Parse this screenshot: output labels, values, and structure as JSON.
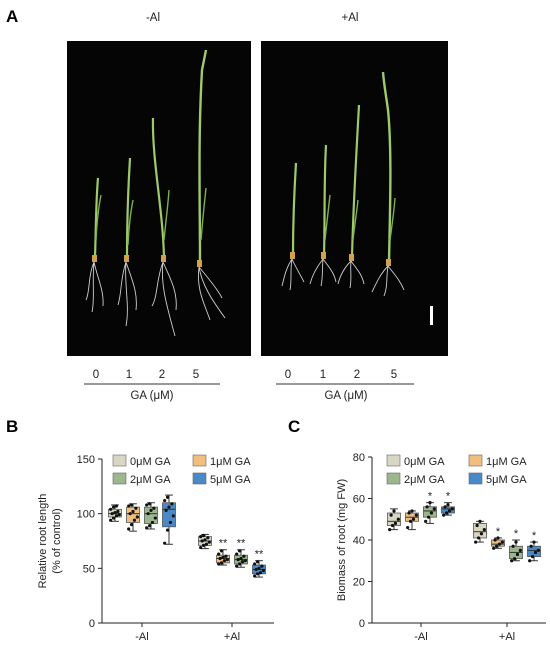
{
  "panel_a": {
    "letter": "A",
    "left_label": "-Al",
    "right_label": "+Al",
    "doses": [
      "0",
      "1",
      "2",
      "5"
    ],
    "axis_label": "GA (μM)"
  },
  "chart_data": [
    {
      "panel": "B",
      "type": "box",
      "ylabel_line1": "Relative root length",
      "ylabel_line2": "(% of control)",
      "ylim": [
        0,
        150
      ],
      "yticks": [
        "0",
        "50",
        "100",
        "150"
      ],
      "categories": [
        "-Al",
        "+Al"
      ],
      "legend": [
        "0μM GA",
        "1μM GA",
        "2μM GA",
        "5μM GA"
      ],
      "legend_placement": "top",
      "colors": [
        "#d9d7c4",
        "#f0bf7d",
        "#9cb78d",
        "#4a89c8"
      ],
      "series": [
        {
          "name": "0μM GA",
          "boxes": [
            {
              "category": "-Al",
              "min": 93,
              "q1": 97,
              "median": 100,
              "q3": 104,
              "max": 108,
              "points": [
                94,
                96,
                98,
                99,
                100,
                101,
                102,
                104,
                106,
                107
              ],
              "sig": ""
            },
            {
              "category": "+Al",
              "min": 68,
              "q1": 71,
              "median": 75,
              "q3": 79,
              "max": 81,
              "points": [
                69,
                71,
                72,
                74,
                75,
                76,
                78,
                79,
                80
              ],
              "sig": ""
            }
          ]
        },
        {
          "name": "1μM GA",
          "boxes": [
            {
              "category": "-Al",
              "min": 84,
              "q1": 92,
              "median": 100,
              "q3": 106,
              "max": 109,
              "points": [
                86,
                90,
                94,
                97,
                100,
                102,
                105,
                107,
                108
              ],
              "sig": ""
            },
            {
              "category": "+Al",
              "min": 53,
              "q1": 55,
              "median": 59,
              "q3": 62,
              "max": 67,
              "points": [
                54,
                55,
                57,
                58,
                59,
                60,
                61,
                63,
                66
              ],
              "sig": "**"
            }
          ]
        },
        {
          "name": "2μM GA",
          "boxes": [
            {
              "category": "-Al",
              "min": 86,
              "q1": 91,
              "median": 100,
              "q3": 106,
              "max": 110,
              "points": [
                87,
                89,
                92,
                96,
                100,
                103,
                105,
                108,
                109
              ],
              "sig": ""
            },
            {
              "category": "+Al",
              "min": 51,
              "q1": 54,
              "median": 58,
              "q3": 62,
              "max": 67,
              "points": [
                52,
                54,
                56,
                57,
                58,
                59,
                61,
                63,
                66
              ],
              "sig": "**"
            }
          ]
        },
        {
          "name": "5μM GA",
          "boxes": [
            {
              "category": "-Al",
              "min": 72,
              "q1": 88,
              "median": 104,
              "q3": 110,
              "max": 117,
              "points": [
                73,
                85,
                92,
                98,
                103,
                106,
                109,
                112,
                115
              ],
              "sig": ""
            },
            {
              "category": "+Al",
              "min": 42,
              "q1": 45,
              "median": 49,
              "q3": 53,
              "max": 57,
              "points": [
                43,
                45,
                46,
                48,
                49,
                50,
                52,
                54,
                56
              ],
              "sig": "**"
            }
          ]
        }
      ]
    },
    {
      "panel": "C",
      "type": "box",
      "ylabel": "Biomass of root (mg FW)",
      "ylim": [
        0,
        80
      ],
      "yticks": [
        "0",
        "20",
        "40",
        "60",
        "80"
      ],
      "categories": [
        "-Al",
        "+Al"
      ],
      "legend": [
        "0μM GA",
        "1μM GA",
        "2μM GA",
        "5μM GA"
      ],
      "legend_placement": "top",
      "colors": [
        "#d9d7c4",
        "#f0bf7d",
        "#9cb78d",
        "#4a89c8"
      ],
      "series": [
        {
          "name": "0μM GA",
          "boxes": [
            {
              "category": "-Al",
              "min": 45,
              "q1": 47,
              "median": 49,
              "q3": 53,
              "max": 55,
              "points": [
                45,
                47,
                48,
                50,
                52,
                54
              ],
              "sig": ""
            },
            {
              "category": "+Al",
              "min": 39,
              "q1": 41,
              "median": 44,
              "q3": 48,
              "max": 49,
              "points": [
                39,
                41,
                43,
                45,
                47,
                49
              ],
              "sig": ""
            }
          ]
        },
        {
          "name": "1μM GA",
          "boxes": [
            {
              "category": "-Al",
              "min": 45,
              "q1": 49,
              "median": 51,
              "q3": 53,
              "max": 54,
              "points": [
                46,
                49,
                50,
                52,
                53,
                54
              ],
              "sig": ""
            },
            {
              "category": "+Al",
              "min": 36,
              "q1": 37,
              "median": 38,
              "q3": 40,
              "max": 41,
              "points": [
                36,
                37,
                38,
                39,
                40,
                41
              ],
              "sig": "*"
            }
          ]
        },
        {
          "name": "2μM GA",
          "boxes": [
            {
              "category": "-Al",
              "min": 48,
              "q1": 51,
              "median": 54,
              "q3": 56,
              "max": 58,
              "points": [
                49,
                51,
                53,
                55,
                56,
                58
              ],
              "sig": "*"
            },
            {
              "category": "+Al",
              "min": 30,
              "q1": 31,
              "median": 34,
              "q3": 37,
              "max": 40,
              "points": [
                30,
                31,
                33,
                35,
                37,
                39
              ],
              "sig": "*"
            }
          ]
        },
        {
          "name": "5μM GA",
          "boxes": [
            {
              "category": "-Al",
              "min": 52,
              "q1": 53,
              "median": 55,
              "q3": 56,
              "max": 58,
              "points": [
                52,
                53,
                54,
                55,
                56,
                57
              ],
              "sig": "*"
            },
            {
              "category": "+Al",
              "min": 30,
              "q1": 32,
              "median": 35,
              "q3": 37,
              "max": 39,
              "points": [
                30,
                32,
                34,
                35,
                37,
                39
              ],
              "sig": "*"
            }
          ]
        }
      ]
    }
  ]
}
